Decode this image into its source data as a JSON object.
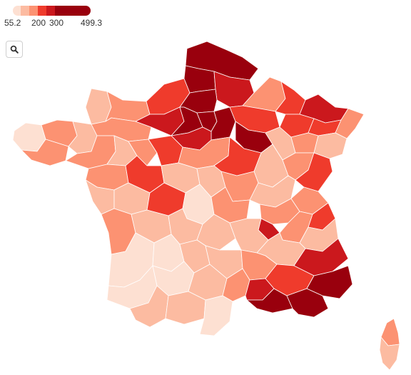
{
  "legend": {
    "min_label": "55.2",
    "mid_label_1": "200",
    "mid_label_2": "300",
    "max_label": "499.3",
    "colors": [
      "#fde0d2",
      "#fcbba1",
      "#fc9272",
      "#ef3b2c",
      "#cb181d",
      "#99000d"
    ]
  },
  "controls": {
    "zoom_icon": "search-icon"
  },
  "map": {
    "region": "France",
    "departments_scale": "sequential-reds"
  }
}
